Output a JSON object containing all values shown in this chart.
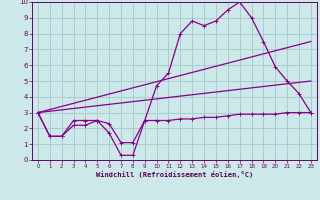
{
  "xlabel": "Windchill (Refroidissement éolien,°C)",
  "bg_color": "#cce8e8",
  "grid_color": "#aacccc",
  "line_color": "#880088",
  "xlim": [
    -0.5,
    23.5
  ],
  "ylim": [
    0,
    10
  ],
  "xticks": [
    0,
    1,
    2,
    3,
    4,
    5,
    6,
    7,
    8,
    9,
    10,
    11,
    12,
    13,
    14,
    15,
    16,
    17,
    18,
    19,
    20,
    21,
    22,
    23
  ],
  "yticks": [
    0,
    1,
    2,
    3,
    4,
    5,
    6,
    7,
    8,
    9,
    10
  ],
  "line1_x": [
    0,
    1,
    2,
    3,
    4,
    5,
    6,
    7,
    8,
    9,
    10,
    11,
    12,
    13,
    14,
    15,
    16,
    17,
    18,
    19,
    20,
    21,
    22,
    23
  ],
  "line1_y": [
    3.0,
    1.5,
    1.5,
    2.5,
    2.5,
    2.5,
    1.7,
    0.3,
    0.3,
    2.5,
    4.7,
    5.5,
    8.0,
    8.8,
    8.5,
    8.8,
    9.5,
    10.0,
    9.0,
    7.5,
    5.9,
    5.0,
    4.2,
    3.0
  ],
  "line2_x": [
    0,
    1,
    2,
    3,
    4,
    5,
    6,
    7,
    8,
    9,
    10,
    11,
    12,
    13,
    14,
    15,
    16,
    17,
    18,
    19,
    20,
    21,
    22,
    23
  ],
  "line2_y": [
    3.0,
    1.5,
    1.5,
    2.2,
    2.2,
    2.5,
    2.3,
    1.1,
    1.1,
    2.5,
    2.5,
    2.5,
    2.6,
    2.6,
    2.7,
    2.7,
    2.8,
    2.9,
    2.9,
    2.9,
    2.9,
    3.0,
    3.0,
    3.0
  ],
  "line3_x": [
    0,
    23
  ],
  "line3_y": [
    3.0,
    7.5
  ],
  "line4_x": [
    0,
    23
  ],
  "line4_y": [
    3.0,
    5.0
  ]
}
